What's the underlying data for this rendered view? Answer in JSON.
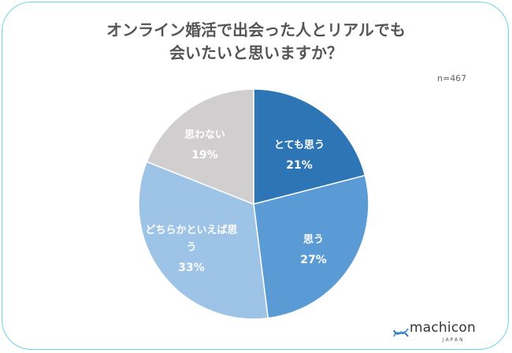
{
  "title_lines": [
    "オンライン婚活で出会った人とリアルでも",
    "会いたいと思いますか？"
  ],
  "sample_size": "n=467",
  "brand": {
    "name": "machicon",
    "sub": "JAPAN"
  },
  "chart_data": {
    "type": "pie",
    "title": "オンライン婚活で出会った人とリアルでも会いたいと思いますか？",
    "note": "n=467",
    "start": "12 o'clock, clockwise",
    "slices": [
      {
        "label": "とても思う",
        "value": 21,
        "display": "21%",
        "color": "#2e75b6",
        "text_color": "#ffffff"
      },
      {
        "label": "思う",
        "value": 27,
        "display": "27%",
        "color": "#5b9bd5",
        "text_color": "#ffffff"
      },
      {
        "label": "どちらかといえば思う",
        "value": 33,
        "display": "33%",
        "color": "#9dc3e6",
        "text_color": "#ffffff"
      },
      {
        "label": "思わない",
        "value": 19,
        "display": "19%",
        "color": "#d0cece",
        "text_color": "#ffffff"
      }
    ]
  }
}
